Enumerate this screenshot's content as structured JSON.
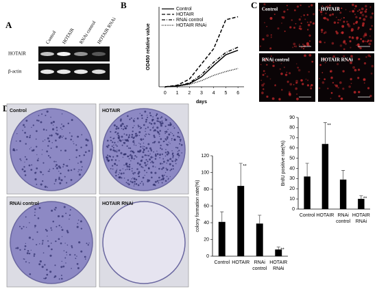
{
  "panel_labels": [
    "A",
    "B",
    "C",
    "D"
  ],
  "gel": {
    "lanes": [
      "Control",
      "HOTAIR",
      "RNAi control",
      "HOTAIR RNAi"
    ],
    "rows": [
      "HOTAIR",
      "β-actin"
    ]
  },
  "micrographs": {
    "labels": [
      "Control",
      "HOTAIR",
      "RNAi control",
      "HOTAIR RNAi"
    ]
  },
  "dishes": {
    "labels": [
      "Control",
      "HOTAIR",
      "RNAi control",
      "HOTAIR RNAi"
    ]
  },
  "chart_data": [
    {
      "type": "line",
      "y_label": "OD450 relative value",
      "x_label": "days",
      "x": [
        0,
        1,
        2,
        3,
        4,
        5,
        6
      ],
      "xlim": [
        -0.5,
        6.5
      ],
      "xticks": [
        0,
        1,
        2,
        3,
        4,
        5,
        6
      ],
      "ylim": [
        0,
        105
      ],
      "series": [
        {
          "name": "Control",
          "color": "#000000",
          "dash": "solid",
          "values": [
            0,
            1,
            4,
            13,
            28,
            42,
            48
          ]
        },
        {
          "name": "HOTAIR",
          "color": "#000000",
          "dash": "dashed",
          "values": [
            0,
            2,
            10,
            30,
            50,
            88,
            92
          ]
        },
        {
          "name": "RNAi control",
          "color": "#000000",
          "dash": "dashdot",
          "values": [
            0,
            1,
            5,
            16,
            32,
            45,
            52
          ]
        },
        {
          "name": "HOTAIR RNAi",
          "color": "#000000",
          "dash": "dotted",
          "values": [
            0,
            1,
            3,
            8,
            15,
            20,
            24
          ]
        }
      ],
      "legend": "upper left"
    },
    {
      "type": "bar",
      "y_label": "colony formation rate(%)",
      "categories": [
        [
          "Control"
        ],
        [
          "HOTAIR"
        ],
        [
          "RNAi",
          "control"
        ],
        [
          "HOTAIR",
          "RNAi"
        ]
      ],
      "values": [
        41,
        84,
        39,
        8
      ],
      "errors": [
        12,
        27,
        10,
        3
      ],
      "annotations": [
        null,
        "**",
        null,
        "**"
      ],
      "color": "#000000",
      "ylim": [
        0,
        120
      ],
      "yticks": [
        0,
        20,
        40,
        60,
        80,
        100,
        120
      ],
      "grid": false
    },
    {
      "type": "bar",
      "y_label": "BrdU positive rate(%)",
      "categories": [
        [
          "Control"
        ],
        [
          "HOTAIR"
        ],
        [
          "RNAi",
          "control"
        ],
        [
          "HOTAIR",
          "RNAi"
        ]
      ],
      "values": [
        32,
        64,
        29,
        10
      ],
      "errors": [
        13,
        21,
        9,
        3
      ],
      "annotations": [
        null,
        "**",
        null,
        "**"
      ],
      "color": "#000000",
      "ylim": [
        0,
        90
      ],
      "yticks": [
        0,
        10,
        20,
        30,
        40,
        50,
        60,
        70,
        80,
        90
      ],
      "grid": false
    }
  ]
}
